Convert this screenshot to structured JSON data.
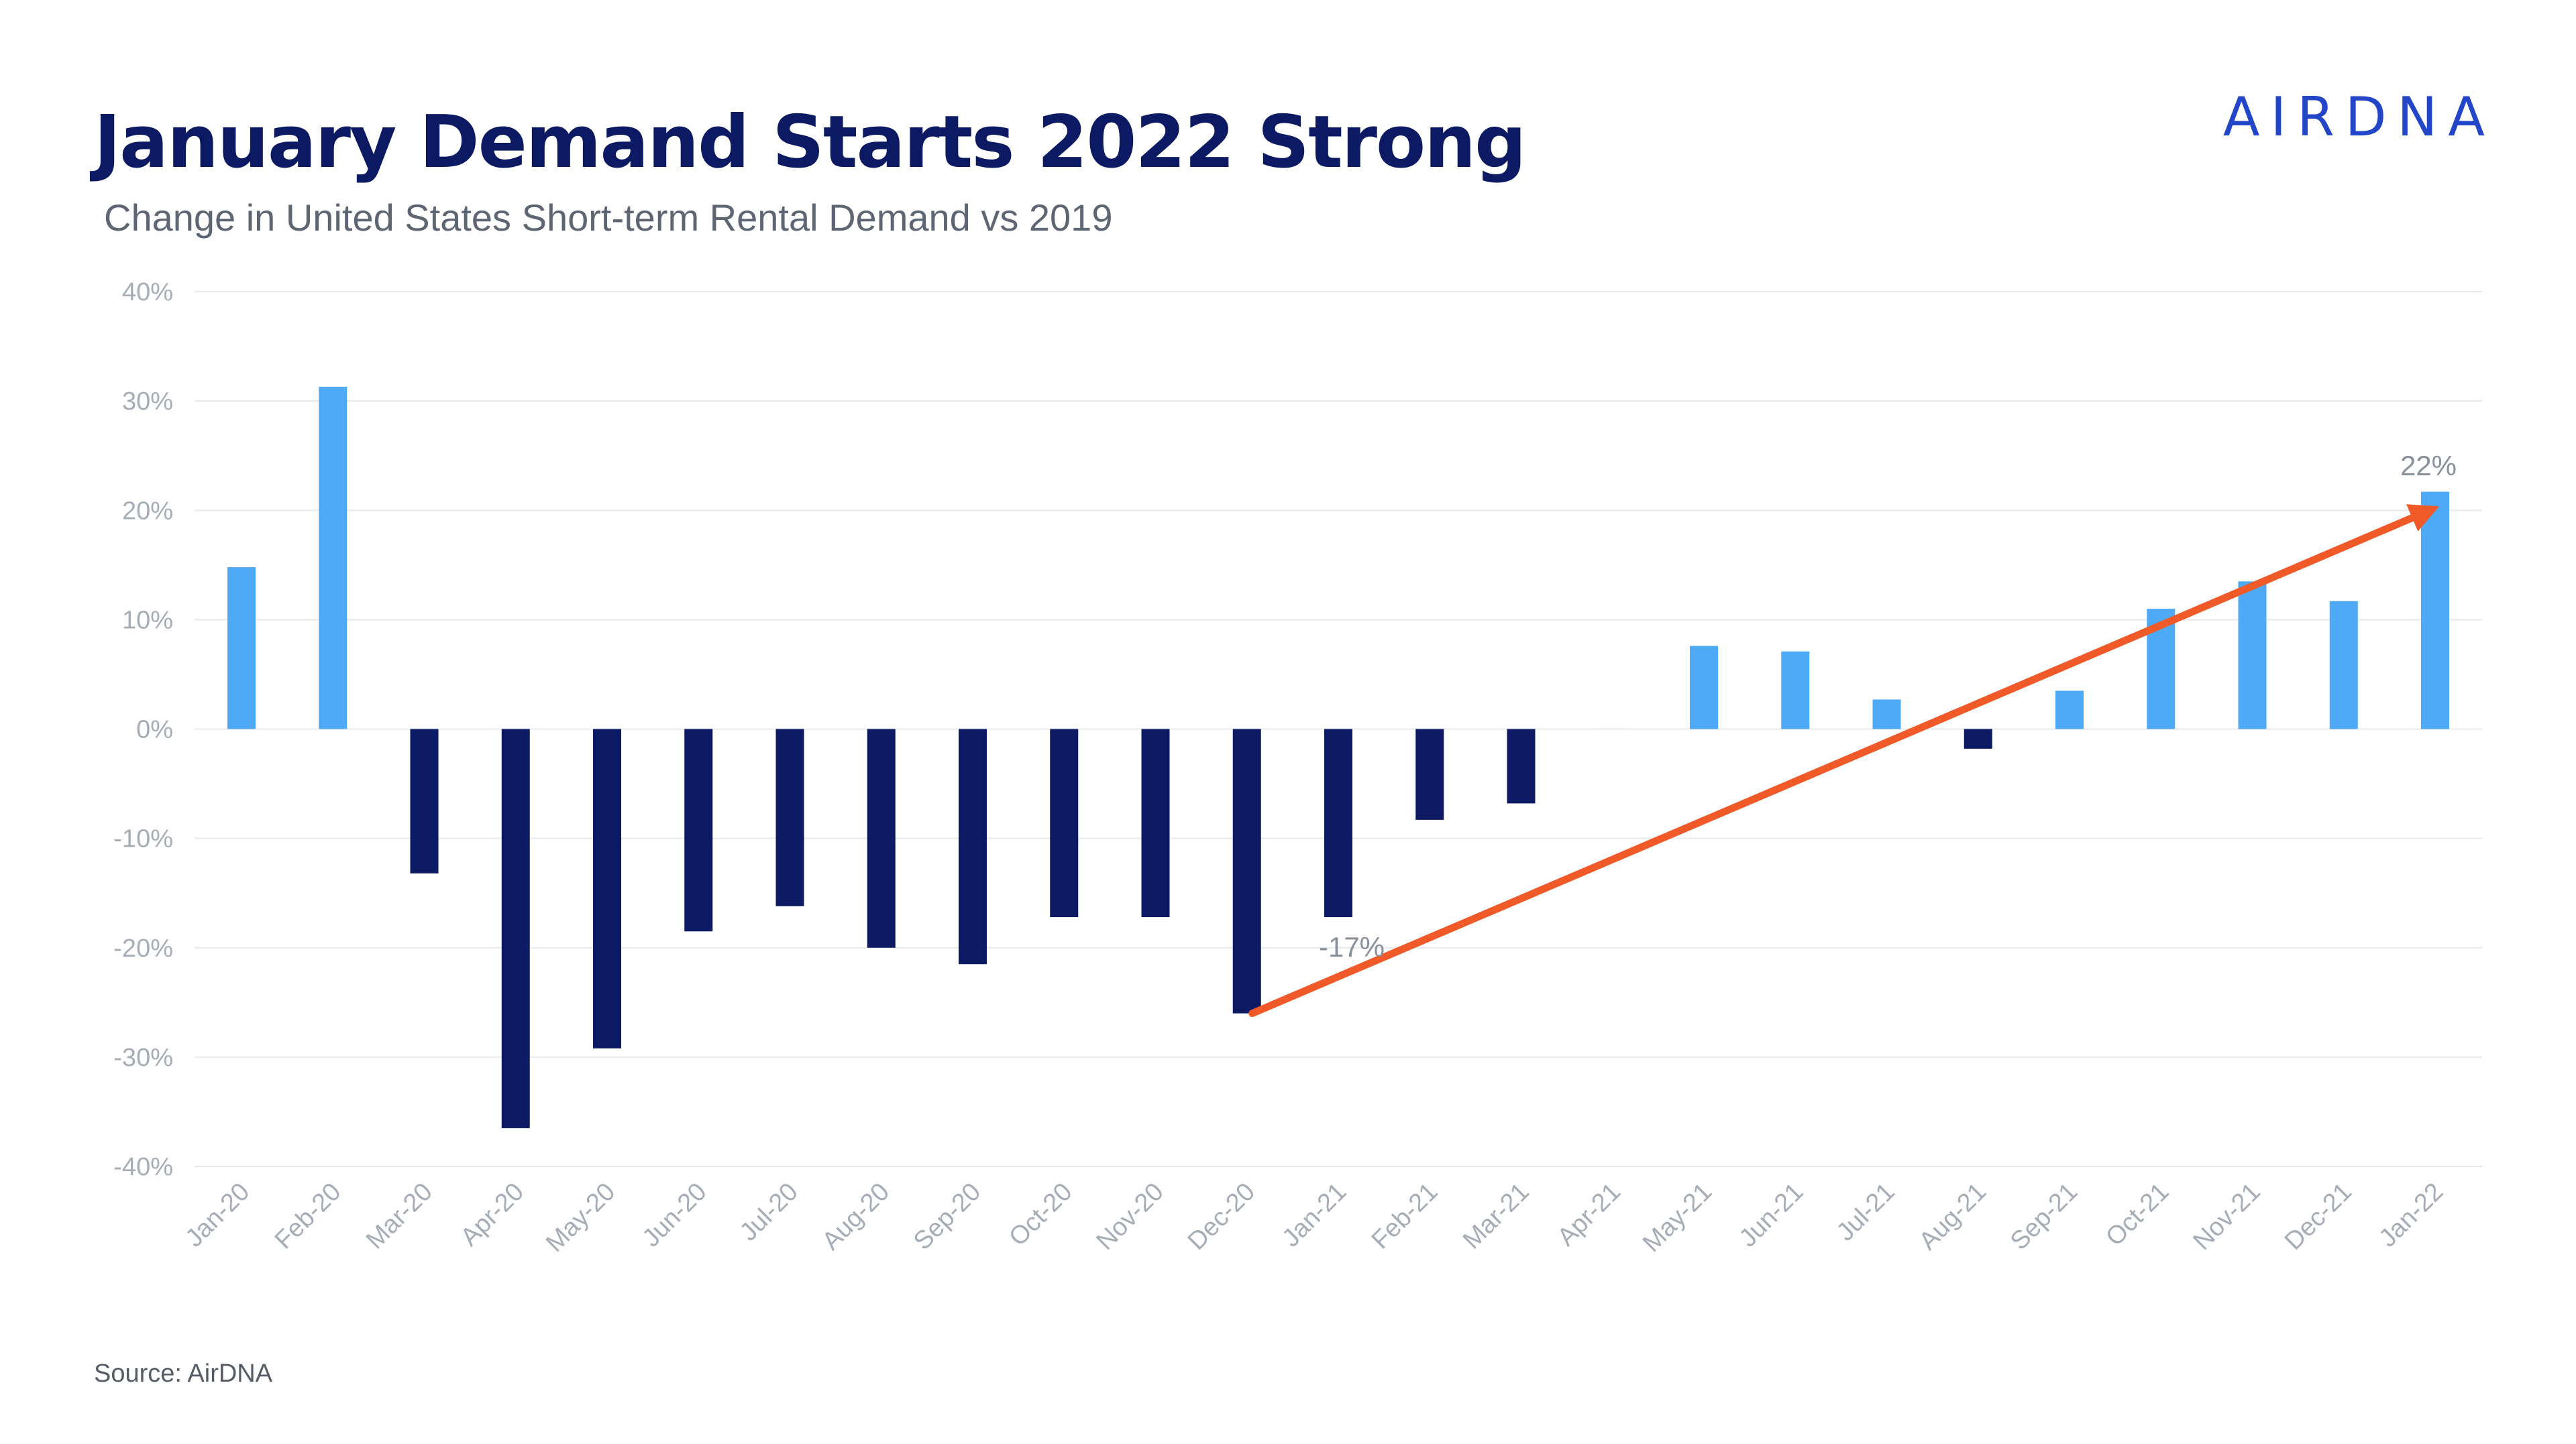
{
  "header": {
    "title": "January Demand Starts 2022 Strong",
    "subtitle": "Change in United States Short-term Rental Demand vs 2019",
    "logo_text": "AIRDNA"
  },
  "footer": {
    "source": "Source: AirDNA"
  },
  "colors": {
    "positive_bar": "#4eaaf7",
    "negative_bar": "#0b1a63",
    "arrow": "#f05a28",
    "grid": "#e6e8ec",
    "title": "#0b1a63"
  },
  "chart_data": {
    "type": "bar",
    "title": "January Demand Starts 2022 Strong",
    "subtitle": "Change in United States Short-term Rental Demand vs 2019",
    "categories": [
      "Jan-20",
      "Feb-20",
      "Mar-20",
      "Apr-20",
      "May-20",
      "Jun-20",
      "Jul-20",
      "Aug-20",
      "Sep-20",
      "Oct-20",
      "Nov-20",
      "Dec-20",
      "Jan-21",
      "Feb-21",
      "Mar-21",
      "Apr-21",
      "May-21",
      "Jun-21",
      "Jul-21",
      "Aug-21",
      "Sep-21",
      "Oct-21",
      "Nov-21",
      "Dec-21",
      "Jan-22"
    ],
    "values": [
      0.148,
      0.313,
      -0.132,
      -0.365,
      -0.292,
      -0.185,
      -0.162,
      -0.2,
      -0.215,
      -0.172,
      -0.172,
      -0.26,
      -0.172,
      -0.083,
      -0.068,
      0.0,
      0.076,
      0.071,
      0.027,
      -0.018,
      0.035,
      0.11,
      0.135,
      0.117,
      0.217
    ],
    "ylim": [
      -0.4,
      0.4
    ],
    "yticks": [
      "40%",
      "30%",
      "20%",
      "10%",
      "0%",
      "-10%",
      "-20%",
      "-30%",
      "-40%"
    ],
    "ytick_values": [
      0.4,
      0.3,
      0.2,
      0.1,
      0.0,
      -0.1,
      -0.2,
      -0.3,
      -0.4
    ],
    "grid": true,
    "annotations": [
      {
        "text": "-17%",
        "category": "Jan-21"
      },
      {
        "text": "22%",
        "category": "Jan-22"
      }
    ],
    "trend_arrow": {
      "from_category": "Dec-20",
      "from_value": -0.26,
      "to_category": "Jan-22",
      "to_value": 0.2
    }
  }
}
